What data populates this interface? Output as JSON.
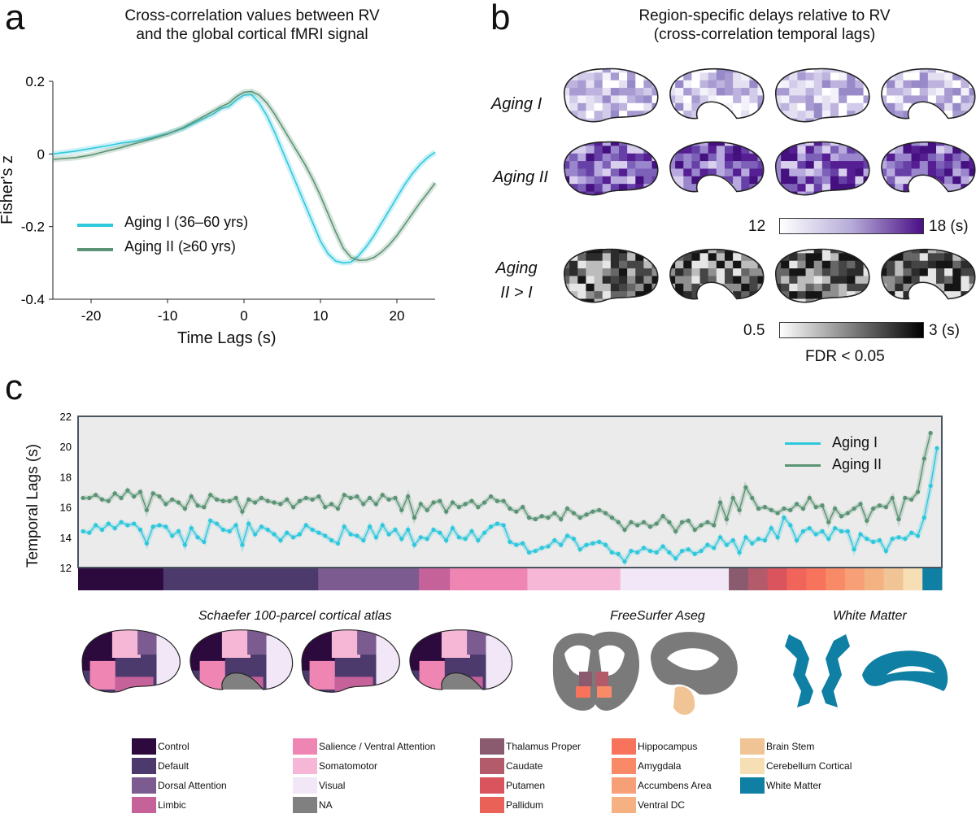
{
  "panels": {
    "a": {
      "letter": "a"
    },
    "b": {
      "letter": "b"
    },
    "c": {
      "letter": "c"
    }
  },
  "colors": {
    "aging1": "#2ec8dd",
    "aging2": "#5a9474",
    "panel_bg": "#ebebeb"
  },
  "chart_data": [
    {
      "id": "a",
      "type": "line",
      "title": "Cross-correlation values between RV\nand the global cortical fMRI signal",
      "title_lines": [
        "Cross-correlation values between RV",
        "and the global cortical fMRI signal"
      ],
      "xlabel": "Time Lags (s)",
      "ylabel": "Fisher's z",
      "xlim": [
        -25,
        25
      ],
      "ylim": [
        -0.4,
        0.2
      ],
      "xticks": [
        -20,
        -10,
        0,
        10,
        20
      ],
      "xtick_labels": [
        "-20",
        "-10",
        "0",
        "10",
        "20"
      ],
      "yticks": [
        0.2,
        0,
        -0.2,
        -0.4
      ],
      "ytick_labels": [
        "0.2",
        "0",
        "-0.2",
        "-0.4"
      ],
      "legend": "center-left",
      "series": [
        {
          "name": "Aging I (36–60 yrs)",
          "color": "#2ec8dd",
          "x": [
            -25,
            -22,
            -20,
            -18,
            -16,
            -14,
            -12,
            -10,
            -8,
            -6,
            -4,
            -3,
            -2,
            -1,
            0,
            1,
            2,
            3,
            4,
            5,
            6,
            7,
            8,
            9,
            10,
            11,
            12,
            13,
            14,
            15,
            16,
            17,
            18,
            19,
            20,
            21,
            22,
            23,
            24,
            25
          ],
          "y": [
            0.0,
            0.008,
            0.015,
            0.022,
            0.03,
            0.036,
            0.045,
            0.056,
            0.07,
            0.09,
            0.11,
            0.125,
            0.13,
            0.148,
            0.162,
            0.163,
            0.14,
            0.105,
            0.06,
            0.01,
            -0.04,
            -0.09,
            -0.14,
            -0.19,
            -0.24,
            -0.275,
            -0.295,
            -0.3,
            -0.298,
            -0.28,
            -0.255,
            -0.225,
            -0.19,
            -0.155,
            -0.12,
            -0.085,
            -0.055,
            -0.03,
            -0.01,
            0.005
          ]
        },
        {
          "name": "Aging II (≥60 yrs)",
          "color": "#5a9474",
          "x": [
            -25,
            -22,
            -20,
            -18,
            -16,
            -14,
            -12,
            -10,
            -8,
            -6,
            -4,
            -3,
            -2,
            -1,
            0,
            1,
            2,
            3,
            4,
            5,
            6,
            7,
            8,
            9,
            10,
            11,
            12,
            13,
            14,
            15,
            16,
            17,
            18,
            19,
            20,
            21,
            22,
            23,
            24,
            25
          ],
          "y": [
            -0.015,
            -0.01,
            -0.003,
            0.008,
            0.018,
            0.03,
            0.042,
            0.055,
            0.072,
            0.095,
            0.118,
            0.13,
            0.14,
            0.158,
            0.17,
            0.172,
            0.162,
            0.14,
            0.11,
            0.075,
            0.04,
            0.005,
            -0.03,
            -0.07,
            -0.115,
            -0.165,
            -0.215,
            -0.26,
            -0.285,
            -0.293,
            -0.292,
            -0.285,
            -0.27,
            -0.25,
            -0.225,
            -0.195,
            -0.165,
            -0.135,
            -0.108,
            -0.08
          ]
        }
      ]
    },
    {
      "id": "c",
      "type": "line",
      "xlabel": "",
      "ylabel": "Temporal Lags (s)",
      "ylim": [
        12,
        22
      ],
      "yticks": [
        12,
        14,
        16,
        18,
        20,
        22
      ],
      "ytick_labels": [
        "12",
        "14",
        "16",
        "18",
        "20",
        "22"
      ],
      "legend": "top-right",
      "series": [
        {
          "name": "Aging I",
          "color": "#2ec8dd",
          "values": [
            14.4,
            14.3,
            14.8,
            14.5,
            14.9,
            14.6,
            15.0,
            14.8,
            14.9,
            14.5,
            13.6,
            14.7,
            14.8,
            14.7,
            14.1,
            14.4,
            13.5,
            14.6,
            14.0,
            13.7,
            15.1,
            14.9,
            14.5,
            14.4,
            14.8,
            13.5,
            14.9,
            14.2,
            14.7,
            14.5,
            14.2,
            13.8,
            14.3,
            14.0,
            14.2,
            14.8,
            14.5,
            14.3,
            14.1,
            13.8,
            13.6,
            14.7,
            14.2,
            14.1,
            13.8,
            14.7,
            14.0,
            14.8,
            14.2,
            14.5,
            13.9,
            14.5,
            13.5,
            14.0,
            13.9,
            14.5,
            14.3,
            13.8,
            14.6,
            14.0,
            13.9,
            14.4,
            13.8,
            14.3,
            14.7,
            14.9,
            14.8,
            13.7,
            13.5,
            13.6,
            13.0,
            13.1,
            13.3,
            13.4,
            13.8,
            13.5,
            14.1,
            13.9,
            13.2,
            13.5,
            13.6,
            13.7,
            13.5,
            13.0,
            12.9,
            12.4,
            13.1,
            13.0,
            13.3,
            13.1,
            13.0,
            13.4,
            13.0,
            12.6,
            13.1,
            13.2,
            12.9,
            13.1,
            13.5,
            13.3,
            14.0,
            13.5,
            13.8,
            13.0,
            14.0,
            13.6,
            13.9,
            13.8,
            14.6,
            14.0,
            15.3,
            14.8,
            13.8,
            14.4,
            14.6,
            14.2,
            14.4,
            13.9,
            14.6,
            14.4,
            14.4,
            13.2,
            14.2,
            13.9,
            13.7,
            13.8,
            13.1,
            13.9,
            14.0,
            13.9,
            14.3,
            14.1,
            15.3,
            17.4,
            19.9
          ]
        },
        {
          "name": "Aging II",
          "color": "#5a9474",
          "values": [
            16.6,
            16.6,
            16.8,
            16.5,
            16.4,
            16.9,
            16.6,
            17.1,
            16.7,
            17.0,
            15.8,
            16.9,
            16.7,
            16.2,
            16.5,
            16.3,
            15.9,
            16.7,
            16.1,
            16.0,
            16.8,
            16.5,
            16.4,
            16.4,
            16.6,
            15.7,
            16.5,
            16.3,
            16.6,
            16.4,
            16.3,
            16.2,
            16.5,
            16.0,
            16.4,
            16.6,
            16.5,
            16.7,
            16.0,
            16.2,
            15.9,
            16.8,
            16.6,
            16.7,
            16.2,
            16.6,
            16.2,
            16.8,
            16.5,
            16.6,
            15.8,
            16.7,
            15.3,
            16.2,
            15.8,
            16.3,
            16.4,
            15.7,
            16.3,
            16.0,
            16.2,
            16.4,
            16.0,
            16.3,
            16.7,
            16.4,
            16.4,
            15.9,
            15.7,
            16.0,
            15.3,
            15.2,
            15.4,
            15.3,
            15.6,
            15.2,
            15.9,
            15.6,
            15.3,
            15.5,
            15.7,
            15.8,
            15.6,
            15.3,
            15.0,
            14.5,
            15.0,
            14.8,
            15.0,
            14.7,
            14.9,
            15.4,
            15.0,
            14.4,
            15.0,
            15.1,
            14.5,
            14.8,
            15.0,
            14.8,
            16.3,
            15.2,
            16.6,
            15.8,
            17.3,
            16.6,
            15.9,
            16.0,
            15.8,
            15.6,
            15.9,
            15.8,
            16.2,
            15.9,
            16.6,
            16.0,
            16.1,
            15.0,
            15.9,
            15.4,
            15.6,
            15.9,
            16.2,
            15.1,
            15.9,
            16.1,
            16.0,
            16.6,
            15.2,
            16.6,
            16.5,
            17.0,
            19.2,
            20.9
          ]
        }
      ]
    }
  ],
  "panel_b": {
    "title_lines": [
      "Region-specific delays relative to RV",
      "(cross-correlation temporal lags)"
    ],
    "rows": [
      {
        "label_lines": [
          "Aging I"
        ],
        "palette": "purple-light"
      },
      {
        "label_lines": [
          "Aging II"
        ],
        "palette": "purple-dark"
      },
      {
        "label_lines": [
          "Aging",
          "II > I"
        ],
        "palette": "gray"
      }
    ],
    "colorbar_purple": {
      "min": "12",
      "max": "18 (s)",
      "colors": [
        "#ffffff",
        "#b6abd8",
        "#4a0f86"
      ]
    },
    "colorbar_gray": {
      "min": "0.5",
      "max": "3 (s)",
      "colors": [
        "#ffffff",
        "#000000"
      ],
      "note": "FDR < 0.05"
    }
  },
  "panel_c": {
    "atlas_titles": [
      "Schaefer 100-parcel cortical atlas",
      "FreeSurfer Aseg",
      "White Matter"
    ],
    "atlas_bar": [
      {
        "color": "#2d0a3e",
        "weight": 11
      },
      {
        "color": "#4c3a6c",
        "weight": 20
      },
      {
        "color": "#7c5b91",
        "weight": 13
      },
      {
        "color": "#c6629a",
        "weight": 4
      },
      {
        "color": "#ef85b3",
        "weight": 10
      },
      {
        "color": "#f6b7d6",
        "weight": 12
      },
      {
        "color": "#f1e7f6",
        "weight": 14
      },
      {
        "color": "#8a5a6e",
        "weight": 2.5
      },
      {
        "color": "#b45b6b",
        "weight": 2.5
      },
      {
        "color": "#d9545d",
        "weight": 2.5
      },
      {
        "color": "#f0645a",
        "weight": 2.5
      },
      {
        "color": "#f7735b",
        "weight": 2.5
      },
      {
        "color": "#f88a67",
        "weight": 2.5
      },
      {
        "color": "#f7a077",
        "weight": 2.5
      },
      {
        "color": "#f4b283",
        "weight": 2.5
      },
      {
        "color": "#f1c495",
        "weight": 2.5
      },
      {
        "color": "#f6dfb4",
        "weight": 2.5
      },
      {
        "color": "#0f7fa4",
        "weight": 2.5
      }
    ],
    "legend": [
      [
        {
          "label": "Control",
          "color": "#2d0a3e"
        },
        {
          "label": "Default",
          "color": "#4c3a6c"
        },
        {
          "label": "Dorsal Attention",
          "color": "#7c5b91"
        },
        {
          "label": "Limbic",
          "color": "#c6629a"
        }
      ],
      [
        {
          "label": "Salience / Ventral Attention",
          "color": "#ef85b3"
        },
        {
          "label": "Somatomotor",
          "color": "#f6b7d6"
        },
        {
          "label": "Visual",
          "color": "#f1e7f6"
        },
        {
          "label": "NA",
          "color": "#808080"
        }
      ],
      [
        {
          "label": "Thalamus Proper",
          "color": "#8a5a6e"
        },
        {
          "label": "Caudate",
          "color": "#b45b6b"
        },
        {
          "label": "Putamen",
          "color": "#d9545d"
        },
        {
          "label": "Pallidum",
          "color": "#ea6157"
        }
      ],
      [
        {
          "label": "Hippocampus",
          "color": "#f7735b"
        },
        {
          "label": "Amygdala",
          "color": "#f88a67"
        },
        {
          "label": "Accumbens Area",
          "color": "#f7a077"
        },
        {
          "label": "Ventral DC",
          "color": "#f5b181"
        }
      ],
      [
        {
          "label": "Brain Stem",
          "color": "#f1c495"
        },
        {
          "label": "Cerebellum Cortical",
          "color": "#f6dfb4"
        },
        {
          "label": "White Matter",
          "color": "#0f7fa4"
        }
      ]
    ]
  }
}
